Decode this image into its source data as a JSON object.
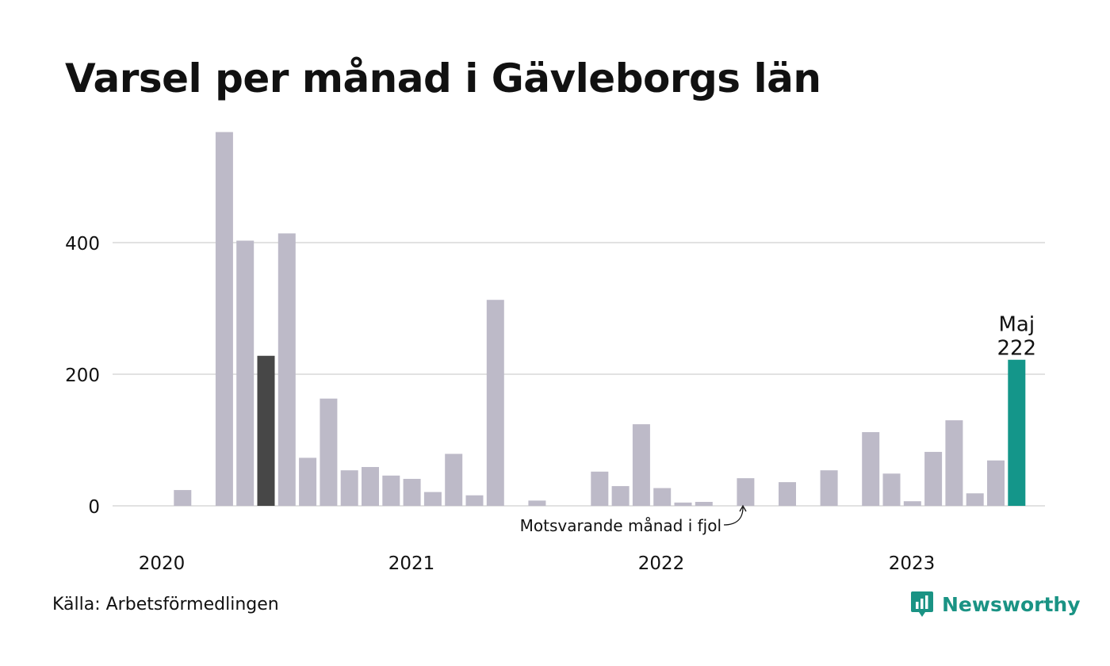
{
  "title": "Varsel per månad i Gävleborgs län",
  "source": "Källa: Arbetsförmedlingen",
  "logo_text": "Newsworthy",
  "logo_icon": "newsworthy-bar-chart-icon",
  "colors": {
    "bar": "#bdbac8",
    "highlight_prev_year": "#474747",
    "highlight_current": "#14968a",
    "grid": "#e2e2e2",
    "brand": "#1a9384"
  },
  "chart_data": {
    "type": "bar",
    "title": "Varsel per månad i Gävleborgs län",
    "xlabel": "",
    "ylabel": "",
    "ylim": [
      0,
      575
    ],
    "yticks": [
      0,
      200,
      400
    ],
    "grid": true,
    "legend": "none",
    "year_labels": [
      "2020",
      "2021",
      "2022",
      "2023"
    ],
    "categories": [
      "2019-12",
      "2020-01",
      "2020-02",
      "2020-03",
      "2020-04",
      "2020-05",
      "2020-06",
      "2020-07",
      "2020-08",
      "2020-09",
      "2020-10",
      "2020-11",
      "2020-12",
      "2021-01",
      "2021-02",
      "2021-03",
      "2021-04",
      "2021-05",
      "2021-06",
      "2021-07",
      "2021-08",
      "2021-09",
      "2021-10",
      "2021-11",
      "2021-12",
      "2022-01",
      "2022-02",
      "2022-03",
      "2022-04",
      "2022-05",
      "2022-06",
      "2022-07",
      "2022-08",
      "2022-09",
      "2022-10",
      "2022-11",
      "2022-12",
      "2023-01",
      "2023-02",
      "2023-03",
      "2023-04",
      "2023-05"
    ],
    "values": [
      0,
      24,
      0,
      568,
      403,
      228,
      414,
      73,
      163,
      54,
      59,
      46,
      41,
      21,
      79,
      16,
      313,
      0,
      8,
      0,
      0,
      52,
      30,
      124,
      27,
      5,
      6,
      0,
      42,
      0,
      36,
      0,
      54,
      0,
      112,
      49,
      7,
      82,
      130,
      19,
      69,
      222
    ],
    "highlight_prev_index": 5,
    "highlight_current_index": 41,
    "annotations": {
      "current_month": "Maj",
      "current_value": "222",
      "prev_year_label": "Motsvarande månad i fjol"
    }
  }
}
